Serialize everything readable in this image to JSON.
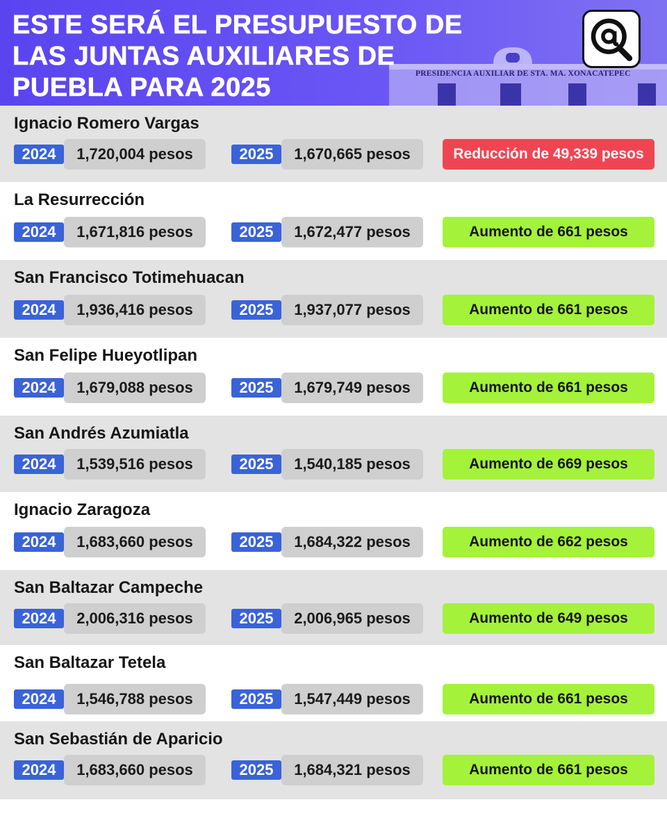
{
  "header": {
    "title_lines": [
      "ESTE SERÁ EL PRESUPUESTO DE",
      "LAS JUNTAS AUXILIARES DE",
      "PUEBLA PARA 2025"
    ],
    "building_sign": "PRESIDENCIA AUXILIAR DE STA. MA. XONACATEPEC",
    "logo_icon": "at-magnifier-logo-icon"
  },
  "colors": {
    "header_bg": "#6a55f5",
    "year_tag": "#3a63d8",
    "increase": "#a4f23a",
    "decrease": "#ef4553",
    "row_alt": "#e3e3e3"
  },
  "rows": [
    {
      "name": "Ignacio Romero Vargas",
      "year_a": "2024",
      "amount_a": "1,720,004 pesos",
      "year_b": "2025",
      "amount_b": "1,670,665 pesos",
      "change": "Reducción de 49,339 pesos",
      "trend": "down"
    },
    {
      "name": "La Resurrección",
      "year_a": "2024",
      "amount_a": "1,671,816 pesos",
      "year_b": "2025",
      "amount_b": "1,672,477 pesos",
      "change": "Aumento de 661 pesos",
      "trend": "up"
    },
    {
      "name": "San Francisco Totimehuacan",
      "year_a": "2024",
      "amount_a": "1,936,416 pesos",
      "year_b": "2025",
      "amount_b": "1,937,077 pesos",
      "change": "Aumento de 661 pesos",
      "trend": "up"
    },
    {
      "name": "San Felipe Hueyotlipan",
      "year_a": "2024",
      "amount_a": "1,679,088 pesos",
      "year_b": "2025",
      "amount_b": "1,679,749 pesos",
      "change": "Aumento de 661 pesos",
      "trend": "up"
    },
    {
      "name": "San Andrés Azumiatla",
      "year_a": "2024",
      "amount_a": "1,539,516 pesos",
      "year_b": "2025",
      "amount_b": "1,540,185 pesos",
      "change": "Aumento de 669 pesos",
      "trend": "up"
    },
    {
      "name": "Ignacio Zaragoza",
      "year_a": "2024",
      "amount_a": "1,683,660 pesos",
      "year_b": "2025",
      "amount_b": "1,684,322 pesos",
      "change": "Aumento de 662 pesos",
      "trend": "up"
    },
    {
      "name": "San Baltazar Campeche",
      "year_a": "2024",
      "amount_a": "2,006,316 pesos",
      "year_b": "2025",
      "amount_b": "2,006,965 pesos",
      "change": "Aumento de 649 pesos",
      "trend": "up"
    },
    {
      "name": "San Baltazar Tetela",
      "year_a": "2024",
      "amount_a": "1,546,788 pesos",
      "year_b": "2025",
      "amount_b": "1,547,449 pesos",
      "change": "Aumento de 661 pesos",
      "trend": "up"
    },
    {
      "name": "San Sebastián de Aparicio",
      "year_a": "2024",
      "amount_a": "1,683,660 pesos",
      "year_b": "2025",
      "amount_b": "1,684,321 pesos",
      "change": "Aumento de 661 pesos",
      "trend": "up"
    }
  ]
}
